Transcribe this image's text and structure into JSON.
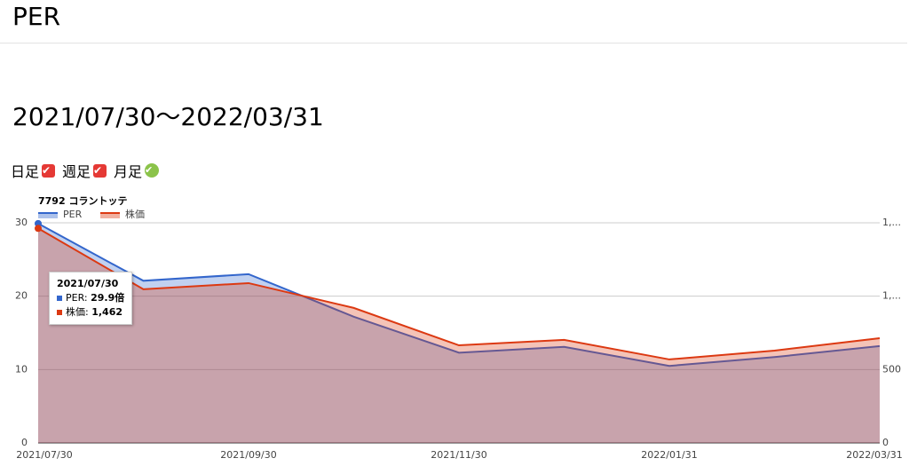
{
  "header": {
    "title": "PER"
  },
  "range_title": "2021/07/30〜2022/03/31",
  "periods": [
    {
      "label": "日足"
    },
    {
      "label": "週足"
    },
    {
      "label": "月足"
    }
  ],
  "chart_data": {
    "type": "area",
    "title": "7792 コラントッテ",
    "categories": [
      "2021/07/30",
      null,
      "2021/09/30",
      null,
      "2021/11/30",
      null,
      "2022/01/31",
      null,
      "2022/03/31"
    ],
    "series": [
      {
        "name": "PER",
        "color": "#3366cc",
        "values": [
          29.9,
          22.1,
          23.0,
          17.2,
          12.3,
          13.1,
          10.5,
          11.7,
          13.2
        ]
      },
      {
        "name": "株価",
        "color": "#dc3912",
        "axis": "y2",
        "values": [
          1462,
          1047,
          1089,
          920,
          665,
          702,
          569,
          629,
          714
        ]
      }
    ],
    "ylim": [
      0,
      30
    ],
    "yticks": [
      0,
      10,
      20,
      30
    ],
    "y2lim": [
      0,
      1500
    ],
    "y2ticks": [
      0,
      500,
      {
        "value": 1000,
        "label": "1,..."
      },
      {
        "value": 1500,
        "label": "1,..."
      }
    ],
    "grid": true,
    "tooltip": {
      "title": "2021/07/30",
      "lines": [
        {
          "label": "PER: ",
          "value": "29.9倍"
        },
        {
          "label": "株価: ",
          "value": "1,462"
        }
      ]
    }
  }
}
